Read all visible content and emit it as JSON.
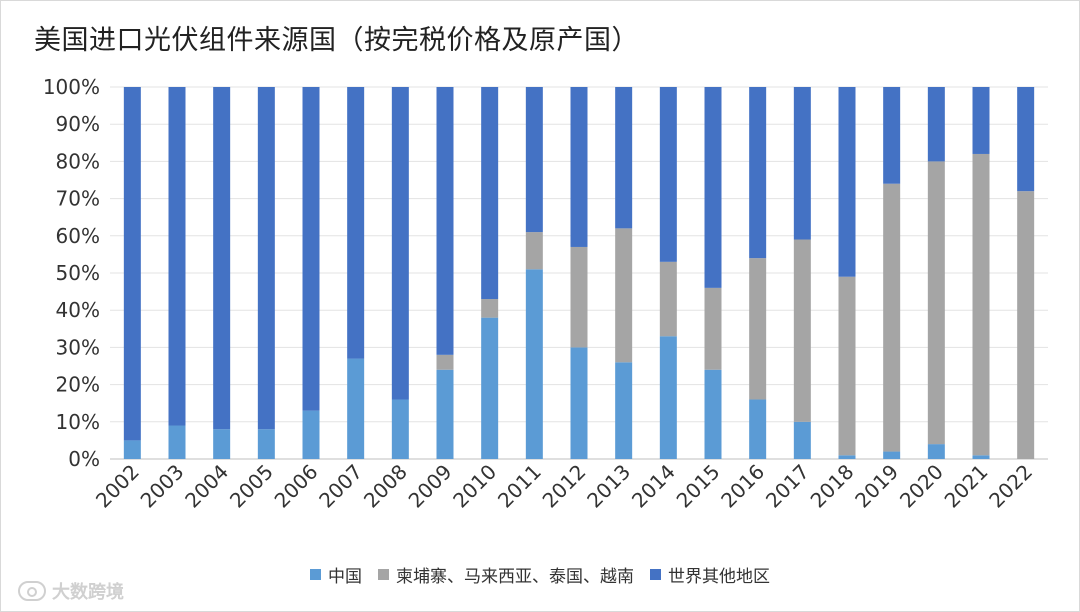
{
  "title": "美国进口光伏组件来源国（按完税价格及原产国）",
  "watermark": "大数跨境",
  "chart_data": {
    "type": "stacked-bar-100",
    "title": "美国进口光伏组件来源国（按完税价格及原产国）",
    "categories": [
      "2002",
      "2003",
      "2004",
      "2005",
      "2006",
      "2007",
      "2008",
      "2009",
      "2010",
      "2011",
      "2012",
      "2013",
      "2014",
      "2015",
      "2016",
      "2017",
      "2018",
      "2019",
      "2020",
      "2021",
      "2022"
    ],
    "series": [
      {
        "name": "中国",
        "color": "#5B9BD5",
        "values": [
          5,
          9,
          8,
          8,
          13,
          27,
          16,
          24,
          38,
          51,
          30,
          26,
          33,
          24,
          16,
          10,
          1,
          2,
          4,
          1,
          0
        ]
      },
      {
        "name": "柬埔寨、马来西亚、泰国、越南",
        "color": "#A5A5A5",
        "values": [
          0,
          0,
          0,
          0,
          0,
          0,
          0,
          4,
          5,
          10,
          27,
          36,
          20,
          22,
          38,
          49,
          48,
          72,
          76,
          81,
          72
        ]
      },
      {
        "name": "世界其他地区",
        "color": "#4472C4",
        "values": [
          95,
          91,
          92,
          92,
          87,
          73,
          84,
          72,
          57,
          39,
          43,
          38,
          47,
          54,
          46,
          41,
          51,
          26,
          20,
          18,
          28
        ]
      }
    ],
    "ylim": [
      0,
      100
    ],
    "yticks": [
      "0%",
      "10%",
      "20%",
      "30%",
      "40%",
      "50%",
      "60%",
      "70%",
      "80%",
      "90%",
      "100%"
    ],
    "grid": true,
    "legend_position": "bottom"
  }
}
